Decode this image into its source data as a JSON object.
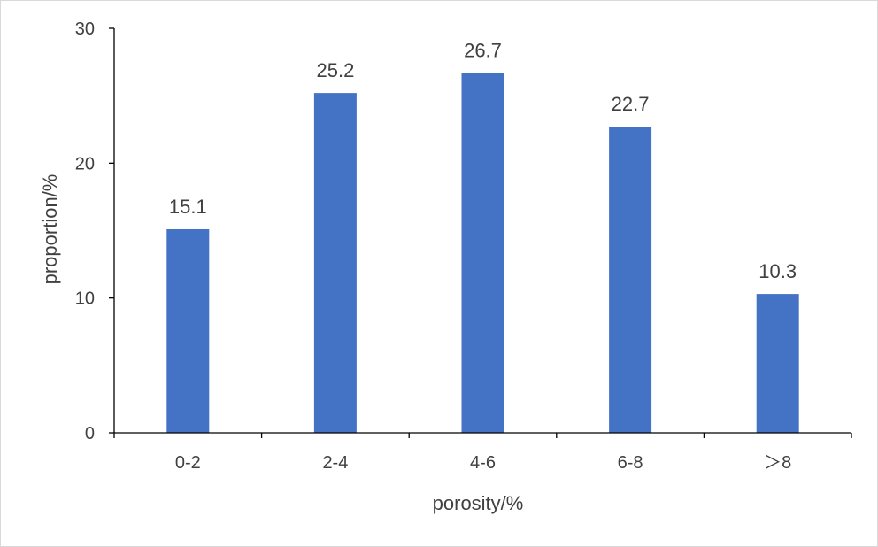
{
  "chart_data": {
    "type": "bar",
    "categories": [
      "0-2",
      "2-4",
      "4-6",
      "6-8",
      "＞8"
    ],
    "values": [
      15.1,
      25.2,
      26.7,
      22.7,
      10.3
    ],
    "data_labels": [
      "15.1",
      "25.2",
      "26.7",
      "22.7",
      "10.3"
    ],
    "xlabel": "porosity/%",
    "ylabel": "proportion/%",
    "ylim": [
      0,
      30
    ],
    "yticks": [
      0,
      10,
      20,
      30
    ],
    "ytick_labels": [
      "0",
      "10",
      "20",
      "30"
    ],
    "grid": false,
    "legend": "none",
    "bar_color": "#4472C4",
    "axis_color": "#000000",
    "text_color": "#404040"
  }
}
